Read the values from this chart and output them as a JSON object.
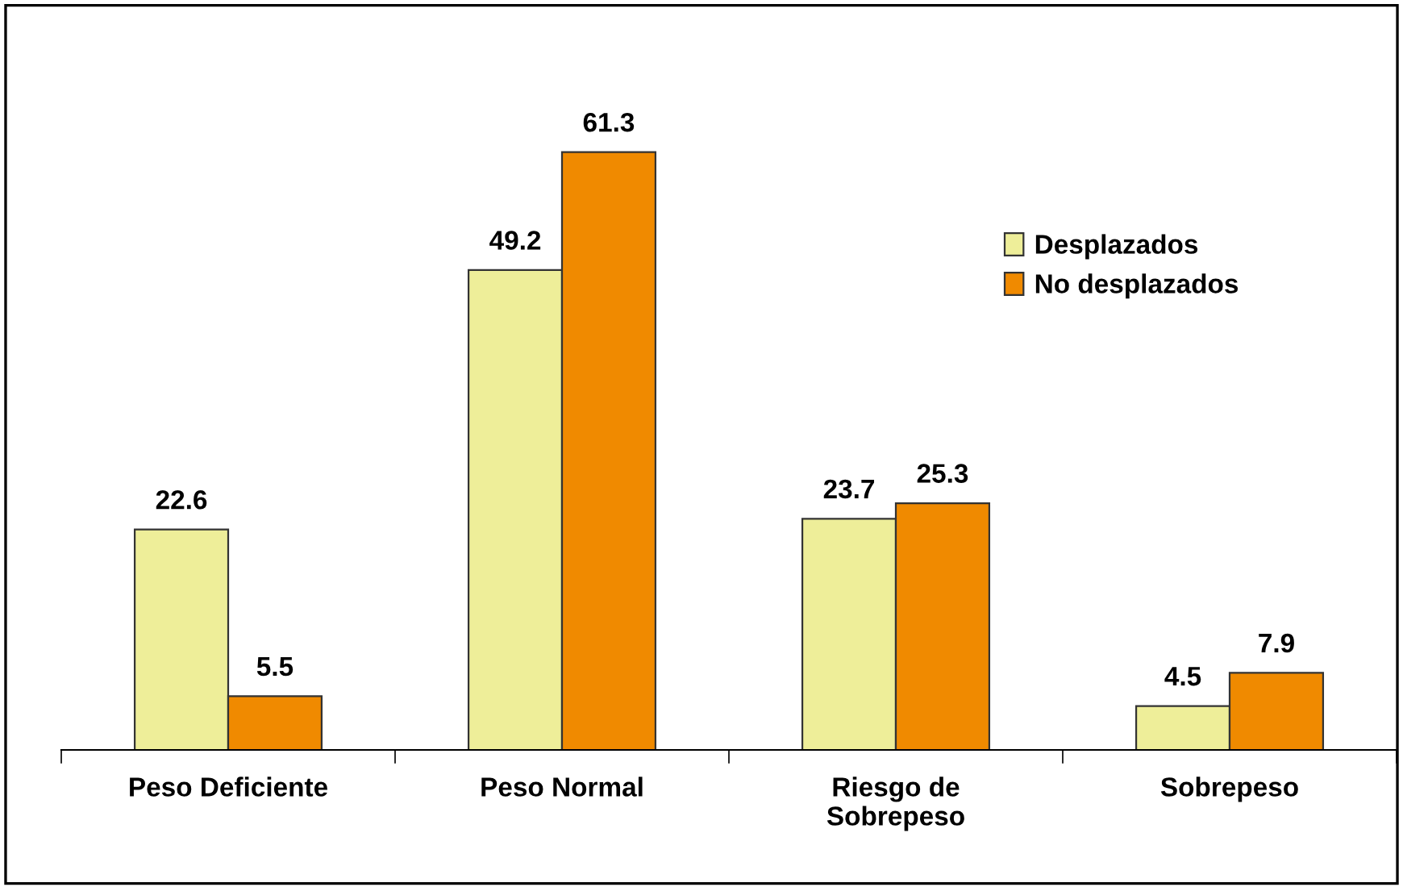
{
  "chart_data": {
    "type": "bar",
    "categories": [
      "Peso Deficiente",
      "Peso Normal",
      "Riesgo de\nSobrepeso",
      "Sobrepeso"
    ],
    "series": [
      {
        "name": "Desplazados",
        "color": "#eeee99",
        "values": [
          22.6,
          49.2,
          23.7,
          4.5
        ]
      },
      {
        "name": "No desplazados",
        "color": "#f08a00",
        "values": [
          5.5,
          61.3,
          25.3,
          7.9
        ]
      }
    ],
    "data_labels": true,
    "legend": "top right"
  }
}
